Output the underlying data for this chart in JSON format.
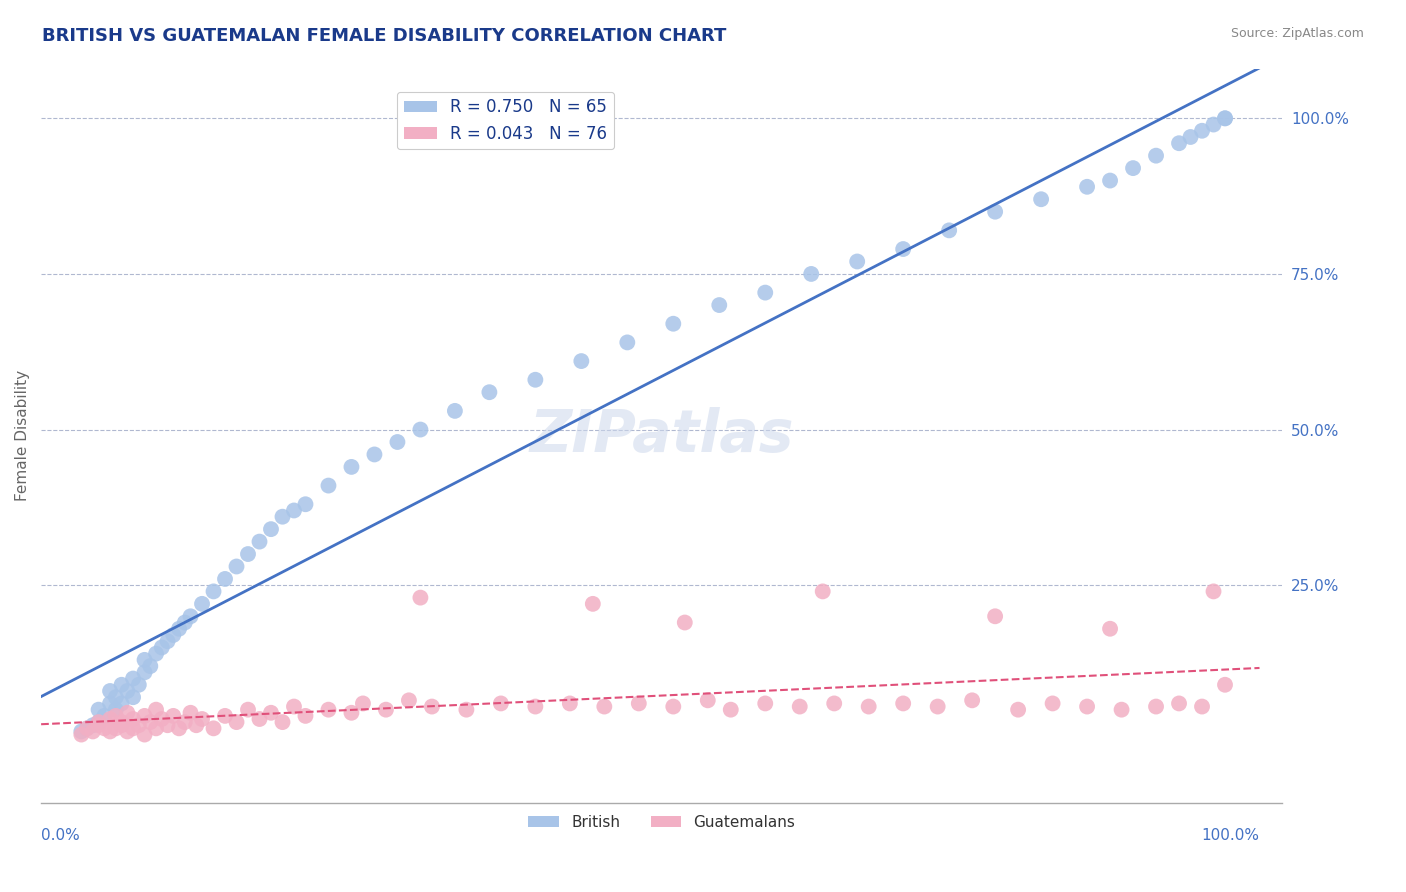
{
  "title": "BRITISH VS GUATEMALAN FEMALE DISABILITY CORRELATION CHART",
  "source": "Source: ZipAtlas.com",
  "ylabel": "Female Disability",
  "british_R": 0.75,
  "british_N": 65,
  "guatemalan_R": 0.043,
  "guatemalan_N": 76,
  "british_color": "#a8c4e8",
  "guatemalan_color": "#f2afc4",
  "british_line_color": "#4472c4",
  "guatemalan_line_color": "#e0507a",
  "title_color": "#1a3a8a",
  "legend_text_color": "#1a3a8a",
  "watermark_text": "ZIPatlas",
  "british_scatter_x": [
    0.5,
    1.0,
    1.5,
    2.0,
    2.0,
    2.5,
    3.0,
    3.0,
    3.5,
    3.5,
    4.0,
    4.0,
    4.5,
    5.0,
    5.0,
    5.5,
    6.0,
    6.0,
    6.5,
    7.0,
    7.5,
    8.0,
    8.5,
    9.0,
    9.5,
    10.0,
    11.0,
    12.0,
    13.0,
    14.0,
    15.0,
    16.0,
    17.0,
    18.0,
    19.0,
    20.0,
    22.0,
    24.0,
    26.0,
    28.0,
    30.0,
    33.0,
    36.0,
    40.0,
    44.0,
    48.0,
    52.0,
    56.0,
    60.0,
    64.0,
    68.0,
    72.0,
    76.0,
    80.0,
    84.0,
    88.0,
    90.0,
    92.0,
    94.0,
    96.0,
    97.0,
    98.0,
    99.0,
    100.0,
    100.0
  ],
  "british_scatter_y": [
    1.5,
    2.0,
    2.5,
    3.0,
    5.0,
    4.0,
    6.0,
    8.0,
    5.0,
    7.0,
    6.0,
    9.0,
    8.0,
    7.0,
    10.0,
    9.0,
    11.0,
    13.0,
    12.0,
    14.0,
    15.0,
    16.0,
    17.0,
    18.0,
    19.0,
    20.0,
    22.0,
    24.0,
    26.0,
    28.0,
    30.0,
    32.0,
    34.0,
    36.0,
    37.0,
    38.0,
    41.0,
    44.0,
    46.0,
    48.0,
    50.0,
    53.0,
    56.0,
    58.0,
    61.0,
    64.0,
    67.0,
    70.0,
    72.0,
    75.0,
    77.0,
    79.0,
    82.0,
    85.0,
    87.0,
    89.0,
    90.0,
    92.0,
    94.0,
    96.0,
    97.0,
    98.0,
    99.0,
    100.0,
    100.0
  ],
  "guatemalan_scatter_x": [
    0.5,
    1.0,
    1.5,
    2.0,
    2.0,
    2.5,
    3.0,
    3.0,
    3.5,
    3.5,
    4.0,
    4.0,
    4.5,
    4.5,
    5.0,
    5.0,
    5.5,
    6.0,
    6.0,
    6.5,
    7.0,
    7.0,
    7.5,
    8.0,
    8.5,
    9.0,
    9.5,
    10.0,
    10.5,
    11.0,
    12.0,
    13.0,
    14.0,
    15.0,
    16.0,
    17.0,
    18.0,
    19.0,
    20.0,
    22.0,
    24.0,
    25.0,
    27.0,
    29.0,
    31.0,
    34.0,
    37.0,
    40.0,
    43.0,
    46.0,
    49.0,
    52.0,
    55.0,
    57.0,
    60.0,
    63.0,
    66.0,
    69.0,
    72.0,
    75.0,
    78.0,
    82.0,
    85.0,
    88.0,
    91.0,
    94.0,
    96.0,
    98.0,
    99.0,
    100.0,
    30.0,
    45.0,
    53.0,
    65.0,
    80.0,
    90.0
  ],
  "guatemalan_scatter_y": [
    1.0,
    2.0,
    1.5,
    2.5,
    3.0,
    2.0,
    3.5,
    1.5,
    2.0,
    4.0,
    2.5,
    3.0,
    1.5,
    4.5,
    2.0,
    3.5,
    2.5,
    1.0,
    4.0,
    3.0,
    2.0,
    5.0,
    3.5,
    2.5,
    4.0,
    2.0,
    3.0,
    4.5,
    2.5,
    3.5,
    2.0,
    4.0,
    3.0,
    5.0,
    3.5,
    4.5,
    3.0,
    5.5,
    4.0,
    5.0,
    4.5,
    6.0,
    5.0,
    6.5,
    5.5,
    5.0,
    6.0,
    5.5,
    6.0,
    5.5,
    6.0,
    5.5,
    6.5,
    5.0,
    6.0,
    5.5,
    6.0,
    5.5,
    6.0,
    5.5,
    6.5,
    5.0,
    6.0,
    5.5,
    5.0,
    5.5,
    6.0,
    5.5,
    24.0,
    9.0,
    23.0,
    22.0,
    19.0,
    24.0,
    20.0,
    18.0
  ]
}
